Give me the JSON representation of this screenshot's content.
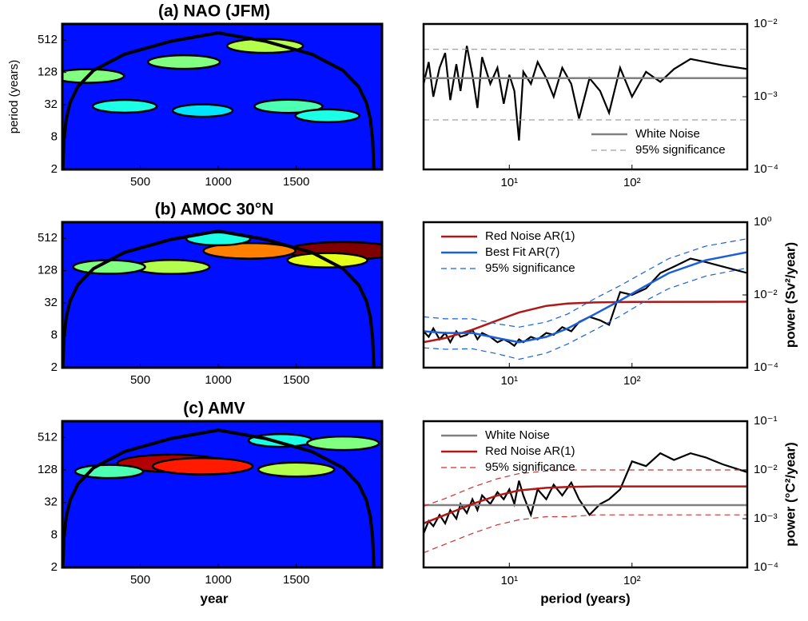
{
  "chart_data": [
    {
      "type": "wavelet",
      "title": "(a) NAO (JFM)",
      "ylabel": "period (years)",
      "colormap": "jet",
      "xlim": [
        0,
        2050
      ],
      "xticks": [
        500,
        1000,
        1500
      ],
      "ylim": [
        2,
        1024
      ],
      "yticks": [
        2,
        8,
        32,
        128,
        512
      ],
      "log": true,
      "coi": {
        "x": [
          3,
          10,
          25,
          50,
          100,
          200,
          400,
          700,
          1000,
          1300,
          1600,
          1800,
          1900,
          1950,
          1975,
          1990,
          1997
        ],
        "y": [
          2.1,
          7,
          17.5,
          35,
          70,
          140,
          280,
          490,
          700,
          490,
          280,
          140,
          70,
          35,
          17.5,
          7,
          2.1
        ]
      },
      "spots": {
        "x": [
          165,
          780,
          1300,
          400,
          900,
          1450,
          1700
        ],
        "y": [
          110,
          200,
          400,
          30,
          25,
          30,
          20
        ],
        "values": [
          0.5,
          0.5,
          0.55,
          0.4,
          0.35,
          0.45,
          0.4
        ]
      }
    },
    {
      "type": "spectrum",
      "legend": "lower right",
      "xlim": [
        2,
        870
      ],
      "xticks": [
        {
          "value": 10,
          "label": "10¹"
        },
        {
          "value": 100,
          "label": "10²"
        }
      ],
      "ylim": [
        0.0001,
        0.01
      ],
      "yticks": [
        {
          "value": 0.0001,
          "label": "10⁻⁴"
        },
        {
          "value": 0.001,
          "label": "10⁻³"
        },
        {
          "value": 0.01,
          "label": "10⁻²"
        }
      ],
      "series": [
        {
          "color": "#000000",
          "x": [
            2,
            2.2,
            2.4,
            2.7,
            3,
            3.3,
            3.7,
            4,
            4.5,
            5,
            5.5,
            6,
            7,
            8,
            9,
            10,
            11,
            12,
            13,
            15,
            17,
            20,
            23,
            27,
            32,
            37,
            45,
            55,
            65,
            80,
            100,
            130,
            170,
            220,
            300,
            400,
            550,
            870
          ],
          "values": [
            0.0015,
            0.003,
            0.001,
            0.0025,
            0.004,
            0.0009,
            0.0028,
            0.0012,
            0.005,
            0.002,
            0.0007,
            0.0035,
            0.0015,
            0.0025,
            0.0008,
            0.002,
            0.0012,
            0.00025,
            0.0022,
            0.0015,
            0.003,
            0.0018,
            0.001,
            0.0025,
            0.0015,
            0.0005,
            0.0018,
            0.0012,
            0.0006,
            0.0025,
            0.001,
            0.0022,
            0.0016,
            0.0024,
            0.0033,
            0.003,
            0.0027,
            0.0024
          ]
        },
        {
          "name": "White Noise",
          "color": "#808080",
          "x": [
            2,
            870
          ],
          "values": [
            0.0018,
            0.0018
          ]
        },
        {
          "name": "95% significance",
          "color": "#a0a0a0",
          "dash": true,
          "x": [
            2,
            870
          ],
          "values": [
            0.0045,
            0.0045
          ],
          "lower": [
            0.00048,
            0.00048
          ]
        }
      ]
    },
    {
      "type": "wavelet",
      "title": "(b) AMOC 30°N",
      "colormap": "jet",
      "xlim": [
        0,
        2050
      ],
      "xticks": [
        500,
        1000,
        1500
      ],
      "ylim": [
        2,
        1024
      ],
      "yticks": [
        2,
        8,
        32,
        128,
        512
      ],
      "log": true,
      "coi": {
        "x": [
          3,
          10,
          25,
          50,
          100,
          200,
          400,
          700,
          1000,
          1300,
          1600,
          1800,
          1900,
          1950,
          1975,
          1990,
          1997
        ],
        "y": [
          2.1,
          7,
          17.5,
          35,
          70,
          140,
          280,
          490,
          700,
          490,
          280,
          140,
          70,
          35,
          17.5,
          7,
          2.1
        ]
      },
      "spots": {
        "x": [
          1800,
          1200,
          700,
          300,
          1700,
          1000
        ],
        "y": [
          300,
          300,
          150,
          150,
          200,
          500
        ],
        "values": [
          1.0,
          0.75,
          0.55,
          0.5,
          0.6,
          0.4
        ]
      }
    },
    {
      "type": "spectrum",
      "legend": "upper left",
      "ylabel": "power (Sv²/year)",
      "xlim": [
        2,
        870
      ],
      "xticks": [
        {
          "value": 10,
          "label": "10¹"
        },
        {
          "value": 100,
          "label": "10²"
        }
      ],
      "ylim": [
        0.0001,
        1
      ],
      "yticks": [
        {
          "value": 0.0001,
          "label": "10⁻⁴"
        },
        {
          "value": 0.01,
          "label": "10⁻²"
        },
        {
          "value": 1,
          "label": "10⁰"
        }
      ],
      "series": [
        {
          "color": "#000000",
          "x": [
            2,
            2.2,
            2.4,
            2.7,
            3,
            3.3,
            3.7,
            4,
            4.5,
            5,
            5.5,
            6,
            7,
            8,
            9,
            10,
            11,
            12,
            13,
            15,
            17,
            20,
            23,
            27,
            32,
            37,
            45,
            55,
            65,
            80,
            100,
            130,
            170,
            220,
            300,
            400,
            550,
            870
          ],
          "values": [
            0.001,
            0.0007,
            0.0012,
            0.0006,
            0.0009,
            0.0005,
            0.001,
            0.0007,
            0.0008,
            0.0011,
            0.0006,
            0.0009,
            0.0007,
            0.0005,
            0.0006,
            0.0005,
            0.0004,
            0.0006,
            0.0005,
            0.0007,
            0.0006,
            0.0009,
            0.0008,
            0.0013,
            0.001,
            0.0018,
            0.0025,
            0.002,
            0.0015,
            0.012,
            0.01,
            0.015,
            0.04,
            0.06,
            0.1,
            0.08,
            0.06,
            0.04
          ]
        },
        {
          "name": "Red Noise AR(1)",
          "color": "#b01818",
          "x": [
            2,
            3,
            5,
            8,
            12,
            20,
            30,
            50,
            100,
            870
          ],
          "values": [
            0.0005,
            0.00065,
            0.0011,
            0.002,
            0.0033,
            0.005,
            0.0058,
            0.0062,
            0.0064,
            0.0065
          ]
        },
        {
          "name": "Best Fit AR(7)",
          "color": "#1a5fd8",
          "x": [
            2,
            3,
            5,
            8,
            12,
            20,
            30,
            50,
            80,
            130,
            200,
            400,
            870
          ],
          "values": [
            0.001,
            0.0009,
            0.0009,
            0.00065,
            0.0005,
            0.0007,
            0.0012,
            0.003,
            0.007,
            0.018,
            0.04,
            0.09,
            0.15
          ]
        },
        {
          "name": "95% significance",
          "color": "#1a5fd8",
          "dash": true,
          "x": [
            2,
            3,
            5,
            8,
            12,
            20,
            30,
            50,
            80,
            130,
            200,
            400,
            870
          ],
          "values": [
            0.0025,
            0.0022,
            0.0022,
            0.0016,
            0.0013,
            0.0018,
            0.003,
            0.008,
            0.018,
            0.045,
            0.1,
            0.22,
            0.35
          ],
          "lower": [
            0.00035,
            0.00032,
            0.00033,
            0.00024,
            0.00017,
            0.00025,
            0.00045,
            0.0011,
            0.0026,
            0.007,
            0.015,
            0.033,
            0.055
          ]
        }
      ]
    },
    {
      "type": "wavelet",
      "title": "(c) AMV",
      "xlabel": "year",
      "colormap": "jet",
      "xlim": [
        0,
        2050
      ],
      "xticks": [
        500,
        1000,
        1500
      ],
      "ylim": [
        2,
        1024
      ],
      "yticks": [
        2,
        8,
        32,
        128,
        512
      ],
      "log": true,
      "coi": {
        "x": [
          3,
          10,
          25,
          50,
          100,
          200,
          400,
          700,
          1000,
          1300,
          1600,
          1800,
          1900,
          1950,
          1975,
          1990,
          1997
        ],
        "y": [
          2.1,
          7,
          17.5,
          35,
          70,
          140,
          280,
          490,
          700,
          490,
          280,
          140,
          70,
          35,
          17.5,
          7,
          2.1
        ]
      },
      "spots": {
        "x": [
          700,
          900,
          1500,
          1400,
          1800,
          300
        ],
        "y": [
          170,
          150,
          130,
          450,
          400,
          120
        ],
        "values": [
          0.95,
          0.85,
          0.55,
          0.4,
          0.5,
          0.45
        ]
      }
    },
    {
      "type": "spectrum",
      "legend": "upper left",
      "ylabel": "power (°C²/year)",
      "xlabel": "period (years)",
      "xlim": [
        2,
        870
      ],
      "xticks": [
        {
          "value": 10,
          "label": "10¹"
        },
        {
          "value": 100,
          "label": "10²"
        }
      ],
      "ylim": [
        0.0001,
        0.1
      ],
      "yticks": [
        {
          "value": 0.0001,
          "label": "10⁻⁴"
        },
        {
          "value": 0.001,
          "label": "10⁻³"
        },
        {
          "value": 0.01,
          "label": "10⁻²"
        },
        {
          "value": 0.1,
          "label": "10⁻¹"
        }
      ],
      "series": [
        {
          "color": "#000000",
          "x": [
            2,
            2.2,
            2.4,
            2.7,
            3,
            3.3,
            3.7,
            4,
            4.5,
            5,
            5.5,
            6,
            7,
            8,
            9,
            10,
            11,
            12,
            13,
            15,
            17,
            20,
            23,
            27,
            32,
            37,
            45,
            55,
            65,
            80,
            100,
            130,
            170,
            220,
            300,
            400,
            550,
            870
          ],
          "values": [
            0.0005,
            0.0009,
            0.0007,
            0.0012,
            0.0008,
            0.0015,
            0.001,
            0.002,
            0.0013,
            0.0025,
            0.0015,
            0.003,
            0.002,
            0.0035,
            0.0025,
            0.004,
            0.002,
            0.006,
            0.003,
            0.0012,
            0.004,
            0.0025,
            0.005,
            0.003,
            0.0055,
            0.0025,
            0.0012,
            0.002,
            0.0025,
            0.004,
            0.015,
            0.012,
            0.022,
            0.016,
            0.022,
            0.018,
            0.013,
            0.009
          ]
        },
        {
          "name": "White Noise",
          "color": "#808080",
          "x": [
            2,
            870
          ],
          "values": [
            0.0019,
            0.0019
          ]
        },
        {
          "name": "Red Noise AR(1)",
          "color": "#b01818",
          "x": [
            2,
            3,
            5,
            8,
            12,
            20,
            30,
            50,
            100,
            870
          ],
          "values": [
            0.0008,
            0.0012,
            0.002,
            0.003,
            0.0038,
            0.0043,
            0.0045,
            0.0046,
            0.0046,
            0.0046
          ]
        },
        {
          "name": "95% significance",
          "color": "#d03030",
          "dash": true,
          "x": [
            2,
            3,
            5,
            8,
            12,
            20,
            30,
            50,
            100,
            870
          ],
          "values": [
            0.0018,
            0.0026,
            0.0044,
            0.0066,
            0.0084,
            0.0095,
            0.01,
            0.01,
            0.01,
            0.01
          ],
          "lower": [
            0.0002,
            0.0003,
            0.0005,
            0.00075,
            0.00095,
            0.0011,
            0.0011,
            0.0012,
            0.0012,
            0.0012
          ]
        }
      ]
    }
  ]
}
